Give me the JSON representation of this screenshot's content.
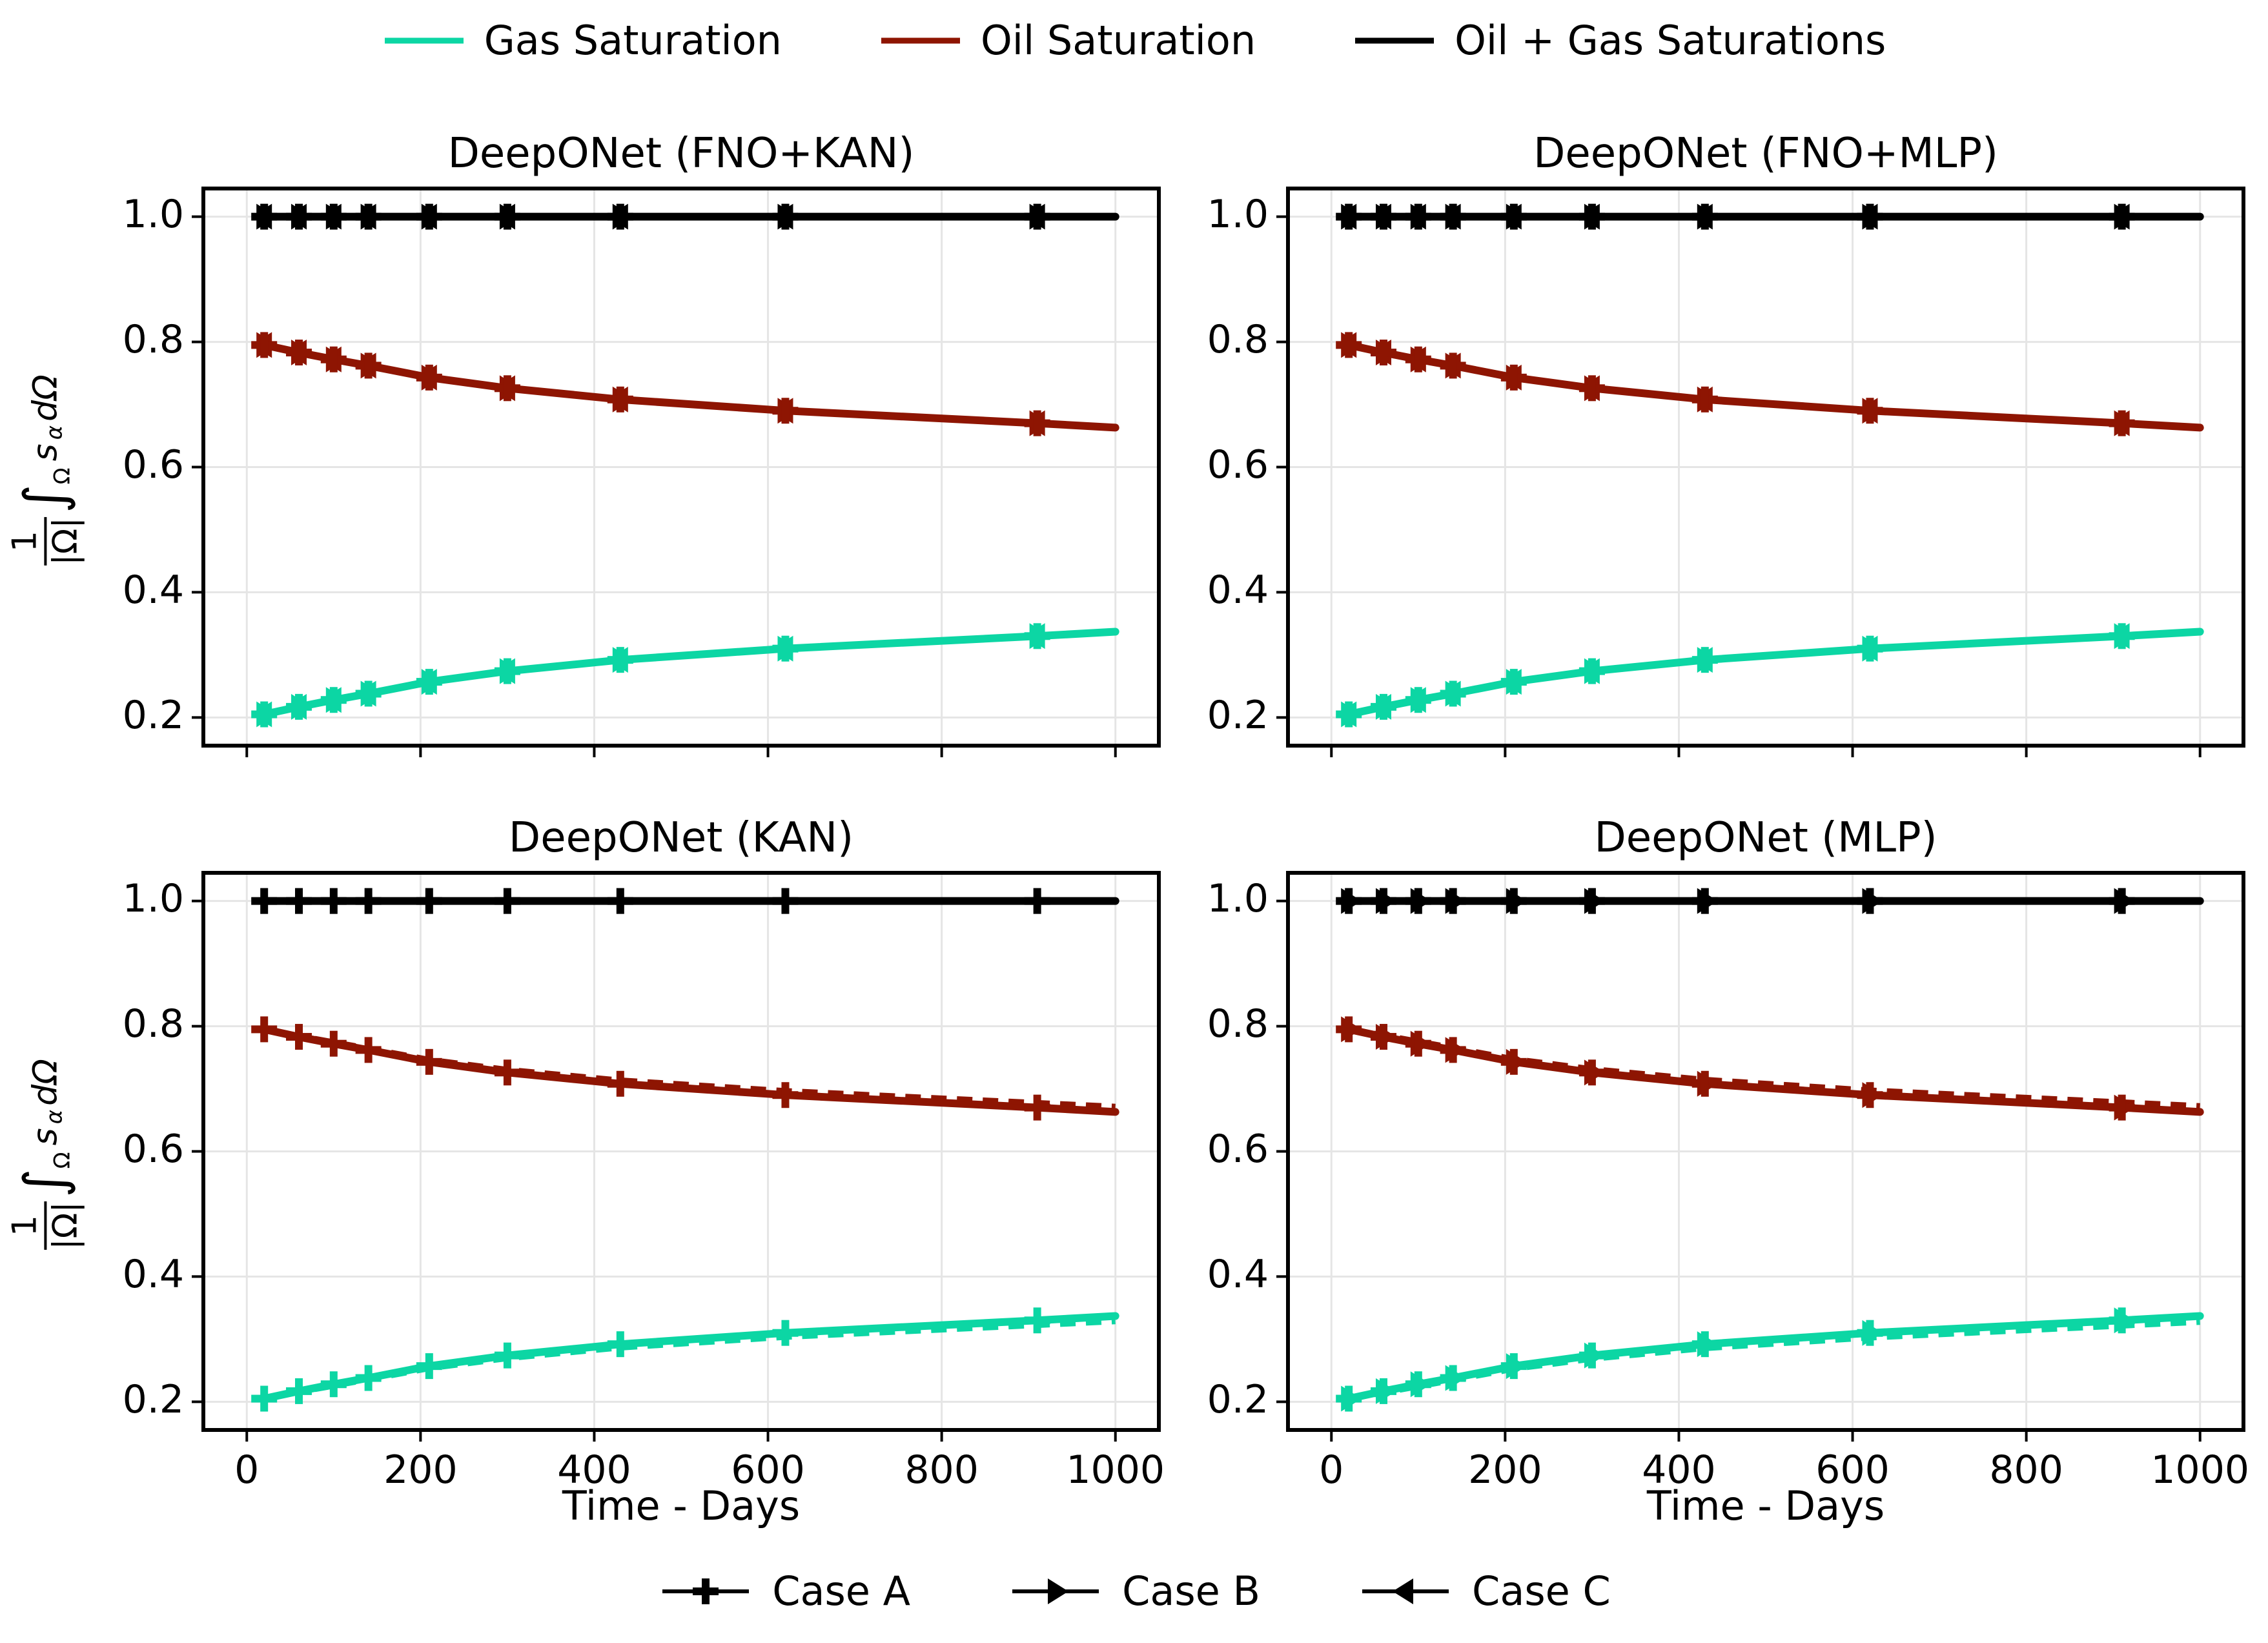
{
  "colors": {
    "gas": "#0cd6a4",
    "oil": "#8e1502",
    "total": "#000000",
    "grid": "#e5e5e5",
    "spine": "#000000",
    "background": "#ffffff"
  },
  "legend_top": {
    "items": [
      {
        "label": "Gas Saturation",
        "color": "#0cd6a4"
      },
      {
        "label": "Oil Saturation",
        "color": "#8e1502"
      },
      {
        "label": "Oil + Gas Saturations",
        "color": "#000000"
      }
    ]
  },
  "legend_bottom": {
    "items": [
      {
        "label": "Case A",
        "marker": "plus"
      },
      {
        "label": "Case B",
        "marker": "tri-right"
      },
      {
        "label": "Case C",
        "marker": "tri-left"
      }
    ]
  },
  "ylabel_parts": {
    "num": "1",
    "den": "|Ω|",
    "integral": "∫",
    "int_sub": "Ω",
    "integrand": "s",
    "integrand_sub": "α",
    "differential": "dΩ"
  },
  "xlabel": "Time - Days",
  "axes": {
    "x_ticks": [
      0,
      200,
      400,
      600,
      800,
      1000
    ],
    "y_ticks": [
      0.2,
      0.4,
      0.6,
      0.8,
      1.0
    ],
    "x_range": [
      -50,
      1050
    ],
    "y_range": [
      0.155,
      1.045
    ],
    "grid": true,
    "xlabel": "Time - Days"
  },
  "chart_data": [
    {
      "type": "line",
      "title": "DeepONet (FNO+KAN)",
      "show_x_tick_labels": false,
      "marker_cases": [
        "plus",
        "tri-right",
        "tri-left"
      ],
      "x": [
        20,
        60,
        100,
        140,
        210,
        300,
        430,
        620,
        910,
        1000
      ],
      "marker_x": [
        20,
        60,
        100,
        140,
        210,
        300,
        430,
        620,
        910
      ],
      "series": [
        {
          "name": "Gas Saturation",
          "color": "#0cd6a4",
          "values": [
            0.205,
            0.217,
            0.228,
            0.238,
            0.257,
            0.274,
            0.292,
            0.31,
            0.33,
            0.337
          ],
          "pred_values": [
            0.205,
            0.217,
            0.228,
            0.238,
            0.257,
            0.274,
            0.292,
            0.31,
            0.33,
            0.337
          ]
        },
        {
          "name": "Oil Saturation",
          "color": "#8e1502",
          "values": [
            0.795,
            0.783,
            0.772,
            0.762,
            0.743,
            0.726,
            0.708,
            0.69,
            0.67,
            0.663
          ],
          "pred_values": [
            0.795,
            0.783,
            0.772,
            0.762,
            0.743,
            0.726,
            0.708,
            0.69,
            0.67,
            0.663
          ]
        },
        {
          "name": "Oil + Gas Saturations",
          "color": "#000000",
          "values": [
            1,
            1,
            1,
            1,
            1,
            1,
            1,
            1,
            1,
            1
          ],
          "pred_values": [
            1,
            1,
            1,
            1,
            1,
            1,
            1,
            1,
            1,
            1
          ]
        }
      ]
    },
    {
      "type": "line",
      "title": "DeepONet (FNO+MLP)",
      "show_x_tick_labels": false,
      "marker_cases": [
        "plus",
        "tri-right",
        "tri-left"
      ],
      "x": [
        20,
        60,
        100,
        140,
        210,
        300,
        430,
        620,
        910,
        1000
      ],
      "marker_x": [
        20,
        60,
        100,
        140,
        210,
        300,
        430,
        620,
        910
      ],
      "series": [
        {
          "name": "Gas Saturation",
          "color": "#0cd6a4",
          "values": [
            0.205,
            0.217,
            0.228,
            0.238,
            0.257,
            0.274,
            0.292,
            0.31,
            0.33,
            0.337
          ],
          "pred_values": [
            0.205,
            0.217,
            0.228,
            0.238,
            0.257,
            0.274,
            0.292,
            0.31,
            0.33,
            0.337
          ]
        },
        {
          "name": "Oil Saturation",
          "color": "#8e1502",
          "values": [
            0.795,
            0.783,
            0.772,
            0.762,
            0.743,
            0.726,
            0.708,
            0.69,
            0.67,
            0.663
          ],
          "pred_values": [
            0.795,
            0.783,
            0.772,
            0.762,
            0.743,
            0.726,
            0.708,
            0.69,
            0.67,
            0.663
          ]
        },
        {
          "name": "Oil + Gas Saturations",
          "color": "#000000",
          "values": [
            1,
            1,
            1,
            1,
            1,
            1,
            1,
            1,
            1,
            1
          ],
          "pred_values": [
            1,
            1,
            1,
            1,
            1,
            1,
            1,
            1,
            1,
            1
          ]
        }
      ]
    },
    {
      "type": "line",
      "title": "DeepONet (KAN)",
      "show_x_tick_labels": true,
      "marker_cases": [
        "plus"
      ],
      "x": [
        20,
        60,
        100,
        140,
        210,
        300,
        430,
        620,
        910,
        1000
      ],
      "marker_x": [
        20,
        60,
        100,
        140,
        210,
        300,
        430,
        620,
        910
      ],
      "series": [
        {
          "name": "Gas Saturation",
          "color": "#0cd6a4",
          "values": [
            0.205,
            0.217,
            0.228,
            0.238,
            0.257,
            0.274,
            0.292,
            0.31,
            0.33,
            0.337
          ],
          "pred_values": [
            0.204,
            0.215,
            0.225,
            0.235,
            0.253,
            0.269,
            0.286,
            0.303,
            0.322,
            0.328
          ]
        },
        {
          "name": "Oil Saturation",
          "color": "#8e1502",
          "values": [
            0.795,
            0.783,
            0.772,
            0.762,
            0.743,
            0.726,
            0.708,
            0.69,
            0.67,
            0.663
          ],
          "pred_values": [
            0.796,
            0.785,
            0.775,
            0.765,
            0.747,
            0.731,
            0.714,
            0.697,
            0.678,
            0.672
          ]
        },
        {
          "name": "Oil + Gas Saturations",
          "color": "#000000",
          "values": [
            1,
            1,
            1,
            1,
            1,
            1,
            1,
            1,
            1,
            1
          ],
          "pred_values": [
            1,
            1,
            1,
            1,
            1,
            1,
            1,
            1,
            1,
            1
          ]
        }
      ]
    },
    {
      "type": "line",
      "title": "DeepONet (MLP)",
      "show_x_tick_labels": true,
      "marker_cases": [
        "plus",
        "tri-right"
      ],
      "x": [
        20,
        60,
        100,
        140,
        210,
        300,
        430,
        620,
        910,
        1000
      ],
      "marker_x": [
        20,
        60,
        100,
        140,
        210,
        300,
        430,
        620,
        910
      ],
      "series": [
        {
          "name": "Gas Saturation",
          "color": "#0cd6a4",
          "values": [
            0.205,
            0.217,
            0.228,
            0.238,
            0.257,
            0.274,
            0.292,
            0.31,
            0.33,
            0.337
          ],
          "pred_values": [
            0.204,
            0.214,
            0.224,
            0.234,
            0.252,
            0.268,
            0.285,
            0.302,
            0.321,
            0.327
          ]
        },
        {
          "name": "Oil Saturation",
          "color": "#8e1502",
          "values": [
            0.795,
            0.783,
            0.772,
            0.762,
            0.743,
            0.726,
            0.708,
            0.69,
            0.67,
            0.663
          ],
          "pred_values": [
            0.796,
            0.786,
            0.776,
            0.766,
            0.748,
            0.732,
            0.715,
            0.698,
            0.679,
            0.673
          ]
        },
        {
          "name": "Oil + Gas Saturations",
          "color": "#000000",
          "values": [
            1,
            1,
            1,
            1,
            1,
            1,
            1,
            1,
            1,
            1
          ],
          "pred_values": [
            1,
            1,
            1,
            1,
            1,
            1,
            1,
            1,
            1,
            1
          ]
        }
      ]
    }
  ]
}
